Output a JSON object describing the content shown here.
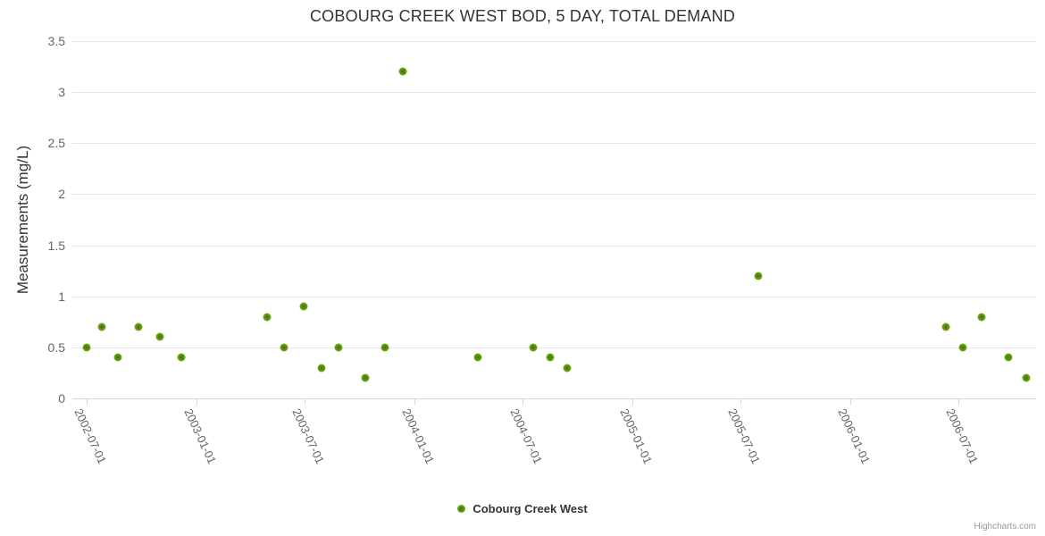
{
  "title": "COBOURG CREEK WEST BOD, 5 DAY, TOTAL DEMAND",
  "y_axis": {
    "title": "Measurements (mg/L)",
    "tick_labels": [
      "3.5",
      "3",
      "2.5",
      "2",
      "1.5",
      "1",
      "0.5",
      "0"
    ],
    "tick_values": [
      3.5,
      3,
      2.5,
      2,
      1.5,
      1,
      0.5,
      0
    ]
  },
  "x_axis": {
    "tick_labels": [
      "2002-07-01",
      "2003-01-01",
      "2003-07-01",
      "2004-01-01",
      "2004-07-01",
      "2005-01-01",
      "2005-07-01",
      "2006-01-01",
      "2006-07-01"
    ]
  },
  "legend": {
    "label": "Cobourg Creek West"
  },
  "credits": "Highcharts.com",
  "colors": {
    "marker_green": "#69a810",
    "marker_edge_green": "#8fc43d",
    "grid": "#e6e6e6",
    "axis_line": "#ccd6eb",
    "title_text": "#333333",
    "label_text": "#666666",
    "credits_text": "#999999"
  },
  "chart_data": {
    "type": "scatter",
    "title": "COBOURG CREEK WEST BOD, 5 DAY, TOTAL DEMAND",
    "xlabel": "",
    "ylabel": "Measurements (mg/L)",
    "ylim": [
      0,
      3.5
    ],
    "y_tick_step": 0.5,
    "x_range": [
      "2002-06-07",
      "2006-11-08"
    ],
    "x_tick_dates": [
      "2002-07-01",
      "2003-01-01",
      "2003-07-01",
      "2004-01-01",
      "2004-07-01",
      "2005-01-01",
      "2005-07-01",
      "2006-01-01",
      "2006-07-01"
    ],
    "grid": true,
    "legend_position": "bottom-center",
    "series": [
      {
        "name": "Cobourg Creek West",
        "color": "#69a810",
        "points": [
          {
            "date": "2002-07-01",
            "value": 0.5
          },
          {
            "date": "2002-07-26",
            "value": 0.7
          },
          {
            "date": "2002-08-22",
            "value": 0.4
          },
          {
            "date": "2002-09-26",
            "value": 0.7
          },
          {
            "date": "2002-10-31",
            "value": 0.6
          },
          {
            "date": "2002-12-06",
            "value": 0.4
          },
          {
            "date": "2003-04-29",
            "value": 0.8
          },
          {
            "date": "2003-05-28",
            "value": 0.5
          },
          {
            "date": "2003-06-29",
            "value": 0.9
          },
          {
            "date": "2003-07-30",
            "value": 0.3
          },
          {
            "date": "2003-08-27",
            "value": 0.5
          },
          {
            "date": "2003-10-11",
            "value": 0.2
          },
          {
            "date": "2003-11-13",
            "value": 0.5
          },
          {
            "date": "2003-12-13",
            "value": 3.2
          },
          {
            "date": "2004-04-17",
            "value": 0.4
          },
          {
            "date": "2004-07-19",
            "value": 0.5
          },
          {
            "date": "2004-08-16",
            "value": 0.4
          },
          {
            "date": "2004-09-13",
            "value": 0.3
          },
          {
            "date": "2005-07-31",
            "value": 1.2
          },
          {
            "date": "2006-06-10",
            "value": 0.7
          },
          {
            "date": "2006-07-09",
            "value": 0.5
          },
          {
            "date": "2006-08-08",
            "value": 0.8
          },
          {
            "date": "2006-09-23",
            "value": 0.4
          },
          {
            "date": "2006-10-23",
            "value": 0.2
          }
        ]
      }
    ]
  }
}
